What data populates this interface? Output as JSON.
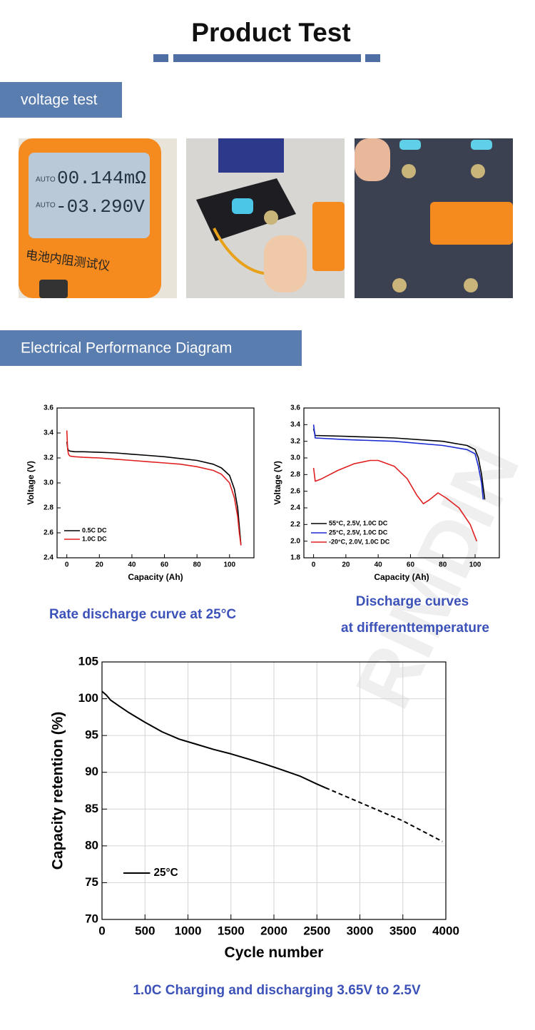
{
  "title": "Product Test",
  "sections": [
    "voltage test",
    "Electrical Performance Diagram"
  ],
  "photo_text": [
    "AUTO",
    "00.144mΩ",
    "AUTO",
    "-03.290V",
    "电池内阻测试仪"
  ],
  "watermark": "RIMDIN",
  "captions": [
    "Rate discharge curve at 25°C",
    "Discharge curves",
    "at differenttemperature",
    "1.0C Charging and discharging 3.65V to 2.5V"
  ],
  "chart_data": [
    {
      "type": "line",
      "xlabel": "Capacity (Ah)",
      "ylabel": "Voltage (V)",
      "xlim": [
        -6,
        115
      ],
      "ylim": [
        2.4,
        3.6
      ],
      "xticks": [
        0,
        20,
        40,
        60,
        80,
        100
      ],
      "yticks": [
        2.4,
        2.6,
        2.8,
        {
          "value": 3,
          "label": "3.0"
        },
        3.2,
        3.4,
        3.6
      ],
      "grid": false,
      "legend": "lower left",
      "series": [
        {
          "name": "0.5C DC",
          "color": "#000000",
          "x": [
            0,
            0.5,
            1,
            2,
            5,
            10,
            20,
            30,
            40,
            50,
            60,
            70,
            80,
            90,
            95,
            100,
            103,
            105,
            106,
            107
          ],
          "values": [
            3.33,
            3.28,
            3.26,
            3.255,
            3.25,
            3.25,
            3.245,
            3.24,
            3.23,
            3.22,
            3.21,
            3.195,
            3.18,
            3.15,
            3.12,
            3.06,
            2.95,
            2.8,
            2.65,
            2.5
          ]
        },
        {
          "name": "1.0C DC",
          "color": "#e02020",
          "x": [
            0,
            0.5,
            1,
            2,
            5,
            10,
            20,
            30,
            40,
            50,
            60,
            70,
            80,
            90,
            95,
            100,
            103,
            105,
            106,
            107
          ],
          "values": [
            3.42,
            3.27,
            3.23,
            3.215,
            3.21,
            3.205,
            3.2,
            3.19,
            3.18,
            3.17,
            3.16,
            3.15,
            3.13,
            3.1,
            3.07,
            3.0,
            2.88,
            2.73,
            2.6,
            2.5
          ]
        }
      ]
    },
    {
      "type": "line",
      "xlabel": "Capacity (Ah)",
      "ylabel": "Voltage (V)",
      "xlim": [
        -6,
        115
      ],
      "ylim": [
        1.8,
        3.6
      ],
      "xticks": [
        0,
        20,
        40,
        60,
        80,
        100
      ],
      "yticks": [
        1.8,
        {
          "value": 2,
          "label": "2.0"
        },
        2.2,
        2.4,
        2.6,
        2.8,
        {
          "value": 3,
          "label": "3.0"
        },
        3.2,
        3.4,
        3.6
      ],
      "grid": false,
      "legend": "lower left",
      "series": [
        {
          "name": "55°C, 2.5V, 1.0C DC",
          "color": "#000000",
          "x": [
            0,
            1,
            20,
            50,
            80,
            95,
            100,
            102,
            104,
            106
          ],
          "values": [
            3.35,
            3.27,
            3.26,
            3.24,
            3.2,
            3.15,
            3.1,
            3.0,
            2.8,
            2.5
          ]
        },
        {
          "name": "25°C, 2.5V, 1.0C DC",
          "color": "#1a2ad0",
          "x": [
            0,
            1,
            20,
            50,
            80,
            95,
            100,
            102,
            104,
            105
          ],
          "values": [
            3.4,
            3.24,
            3.22,
            3.2,
            3.15,
            3.1,
            3.05,
            2.9,
            2.7,
            2.5
          ]
        },
        {
          "name": "-20°C, 2.0V, 1.0C DC",
          "color": "#e02020",
          "x": [
            0,
            1,
            5,
            15,
            25,
            35,
            40,
            50,
            58,
            64,
            68,
            72,
            77,
            82,
            90,
            97,
            101
          ],
          "values": [
            2.88,
            2.72,
            2.75,
            2.85,
            2.93,
            2.97,
            2.97,
            2.9,
            2.75,
            2.55,
            2.45,
            2.5,
            2.58,
            2.52,
            2.4,
            2.2,
            2.0
          ]
        }
      ]
    },
    {
      "type": "line",
      "xlabel": "Cycle number",
      "ylabel": "Capacity retention (%)",
      "xlim": [
        0,
        4000
      ],
      "ylim": [
        70,
        105
      ],
      "xticks": [
        0,
        500,
        1000,
        1500,
        2000,
        2500,
        3000,
        3500,
        4000
      ],
      "yticks": [
        70,
        75,
        80,
        85,
        90,
        95,
        100,
        105
      ],
      "grid": true,
      "legend": "lower left",
      "series": [
        {
          "name": "25°C",
          "color": "#000000",
          "x": [
            0,
            50,
            100,
            200,
            300,
            400,
            500,
            700,
            900,
            1100,
            1300,
            1500,
            1700,
            1900,
            2100,
            2300,
            2500,
            2600
          ],
          "values": [
            101,
            100.5,
            99.8,
            99,
            98.2,
            97.5,
            96.8,
            95.5,
            94.5,
            93.8,
            93.1,
            92.5,
            91.8,
            91.1,
            90.3,
            89.5,
            88.4,
            87.9
          ]
        },
        {
          "color": "#000000",
          "line_style": "dashed",
          "x": [
            2600,
            3000,
            3500,
            3960
          ],
          "values": [
            87.9,
            85.9,
            83.4,
            80.6
          ]
        }
      ]
    }
  ]
}
